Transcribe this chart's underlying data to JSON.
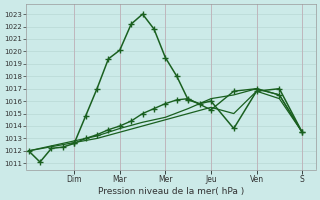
{
  "xlabel": "Pression niveau de la mer( hPa )",
  "bg_color": "#cceae8",
  "grid_color": "#b8d8d4",
  "line_color": "#1a6020",
  "sep_color": "#c0b0b8",
  "ylim": [
    1010.5,
    1023.8
  ],
  "yticks": [
    1011,
    1012,
    1013,
    1014,
    1015,
    1016,
    1017,
    1018,
    1019,
    1020,
    1021,
    1022,
    1023
  ],
  "day_labels": [
    "Dim",
    "Mar",
    "Mer",
    "Jeu",
    "Ven",
    "S"
  ],
  "day_positions": [
    2.0,
    4.0,
    6.0,
    8.0,
    10.0,
    12.0
  ],
  "xlim": [
    -0.1,
    12.6
  ],
  "series": [
    {
      "x": [
        0,
        0.5,
        1,
        1.5,
        2,
        2.5,
        3,
        3.5,
        4,
        4.5,
        5,
        5.5,
        6,
        6.5,
        7,
        7.5,
        8,
        9,
        10,
        11,
        12
      ],
      "y": [
        1012.0,
        1011.1,
        1012.2,
        1012.3,
        1012.6,
        1014.8,
        1017.0,
        1019.4,
        1020.1,
        1022.2,
        1023.0,
        1021.8,
        1019.5,
        1018.0,
        1016.1,
        1015.8,
        1016.0,
        1013.8,
        1016.8,
        1017.0,
        1013.5
      ],
      "marker": "+",
      "markersize": 4,
      "linewidth": 1.1,
      "zorder": 5
    },
    {
      "x": [
        2,
        2.5,
        3,
        3.5,
        4,
        4.5,
        5,
        5.5,
        6,
        6.5,
        7,
        8,
        9,
        10,
        11,
        12
      ],
      "y": [
        1012.6,
        1013.0,
        1013.3,
        1013.7,
        1014.0,
        1014.4,
        1015.0,
        1015.4,
        1015.8,
        1016.1,
        1016.2,
        1015.3,
        1016.8,
        1017.0,
        1016.5,
        1013.5
      ],
      "marker": "+",
      "markersize": 4,
      "linewidth": 1.0,
      "zorder": 4
    },
    {
      "x": [
        0,
        3,
        4,
        5,
        6,
        7,
        8,
        9,
        10,
        11,
        12
      ],
      "y": [
        1012.0,
        1013.0,
        1013.5,
        1014.0,
        1014.5,
        1015.0,
        1015.5,
        1015.0,
        1016.8,
        1016.2,
        1013.5
      ],
      "marker": null,
      "markersize": 0,
      "linewidth": 0.9,
      "zorder": 3
    },
    {
      "x": [
        0,
        3,
        4,
        5,
        6,
        7,
        8,
        9,
        10,
        11,
        12
      ],
      "y": [
        1012.0,
        1013.2,
        1013.8,
        1014.3,
        1014.7,
        1015.4,
        1016.2,
        1016.5,
        1017.0,
        1016.5,
        1013.5
      ],
      "marker": null,
      "markersize": 0,
      "linewidth": 0.9,
      "zorder": 2
    }
  ]
}
